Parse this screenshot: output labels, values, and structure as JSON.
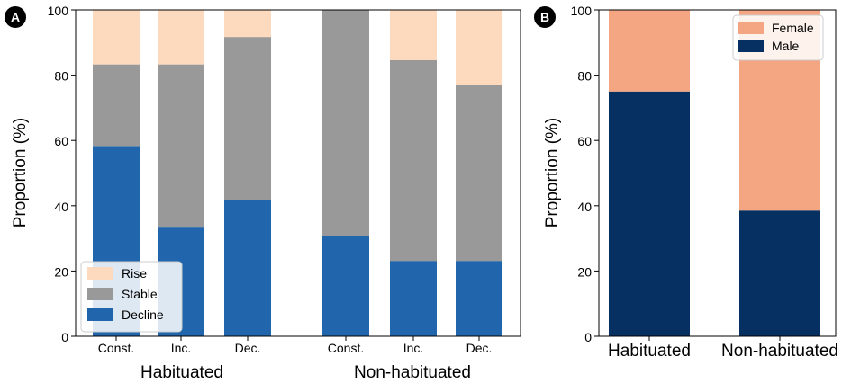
{
  "chart_data": [
    {
      "panel": "A",
      "type": "bar",
      "stacked": true,
      "ylabel": "Proportion (%)",
      "ylim": [
        0,
        100
      ],
      "yticks": [
        0,
        20,
        40,
        60,
        80,
        100
      ],
      "groups": [
        "Habituated",
        "Non-habituated"
      ],
      "categories": [
        "Const.",
        "Inc.",
        "Dec.",
        "Const.",
        "Inc.",
        "Dec."
      ],
      "category_group": [
        0,
        0,
        0,
        1,
        1,
        1
      ],
      "series": [
        {
          "name": "Decline",
          "color": "#2166ac",
          "values": [
            58.3,
            33.3,
            41.7,
            30.8,
            23.1,
            23.1
          ]
        },
        {
          "name": "Stable",
          "color": "#999999",
          "values": [
            25.0,
            50.0,
            50.0,
            69.2,
            61.5,
            53.8
          ]
        },
        {
          "name": "Rise",
          "color": "#fdd9be",
          "values": [
            16.7,
            16.7,
            8.3,
            0.0,
            15.4,
            23.1
          ]
        }
      ],
      "legend": [
        "Rise",
        "Stable",
        "Decline"
      ],
      "legend_loc": "lower-left"
    },
    {
      "panel": "B",
      "type": "bar",
      "stacked": true,
      "ylabel": "Proportion (%)",
      "ylim": [
        0,
        100
      ],
      "yticks": [
        0,
        20,
        40,
        60,
        80,
        100
      ],
      "categories": [
        "Habituated",
        "Non-habituated"
      ],
      "series": [
        {
          "name": "Male",
          "color": "#053061",
          "values": [
            75.0,
            38.5
          ]
        },
        {
          "name": "Female",
          "color": "#f4a582",
          "values": [
            25.0,
            61.5
          ]
        }
      ],
      "legend": [
        "Female",
        "Male"
      ],
      "legend_loc": "upper-right"
    }
  ]
}
